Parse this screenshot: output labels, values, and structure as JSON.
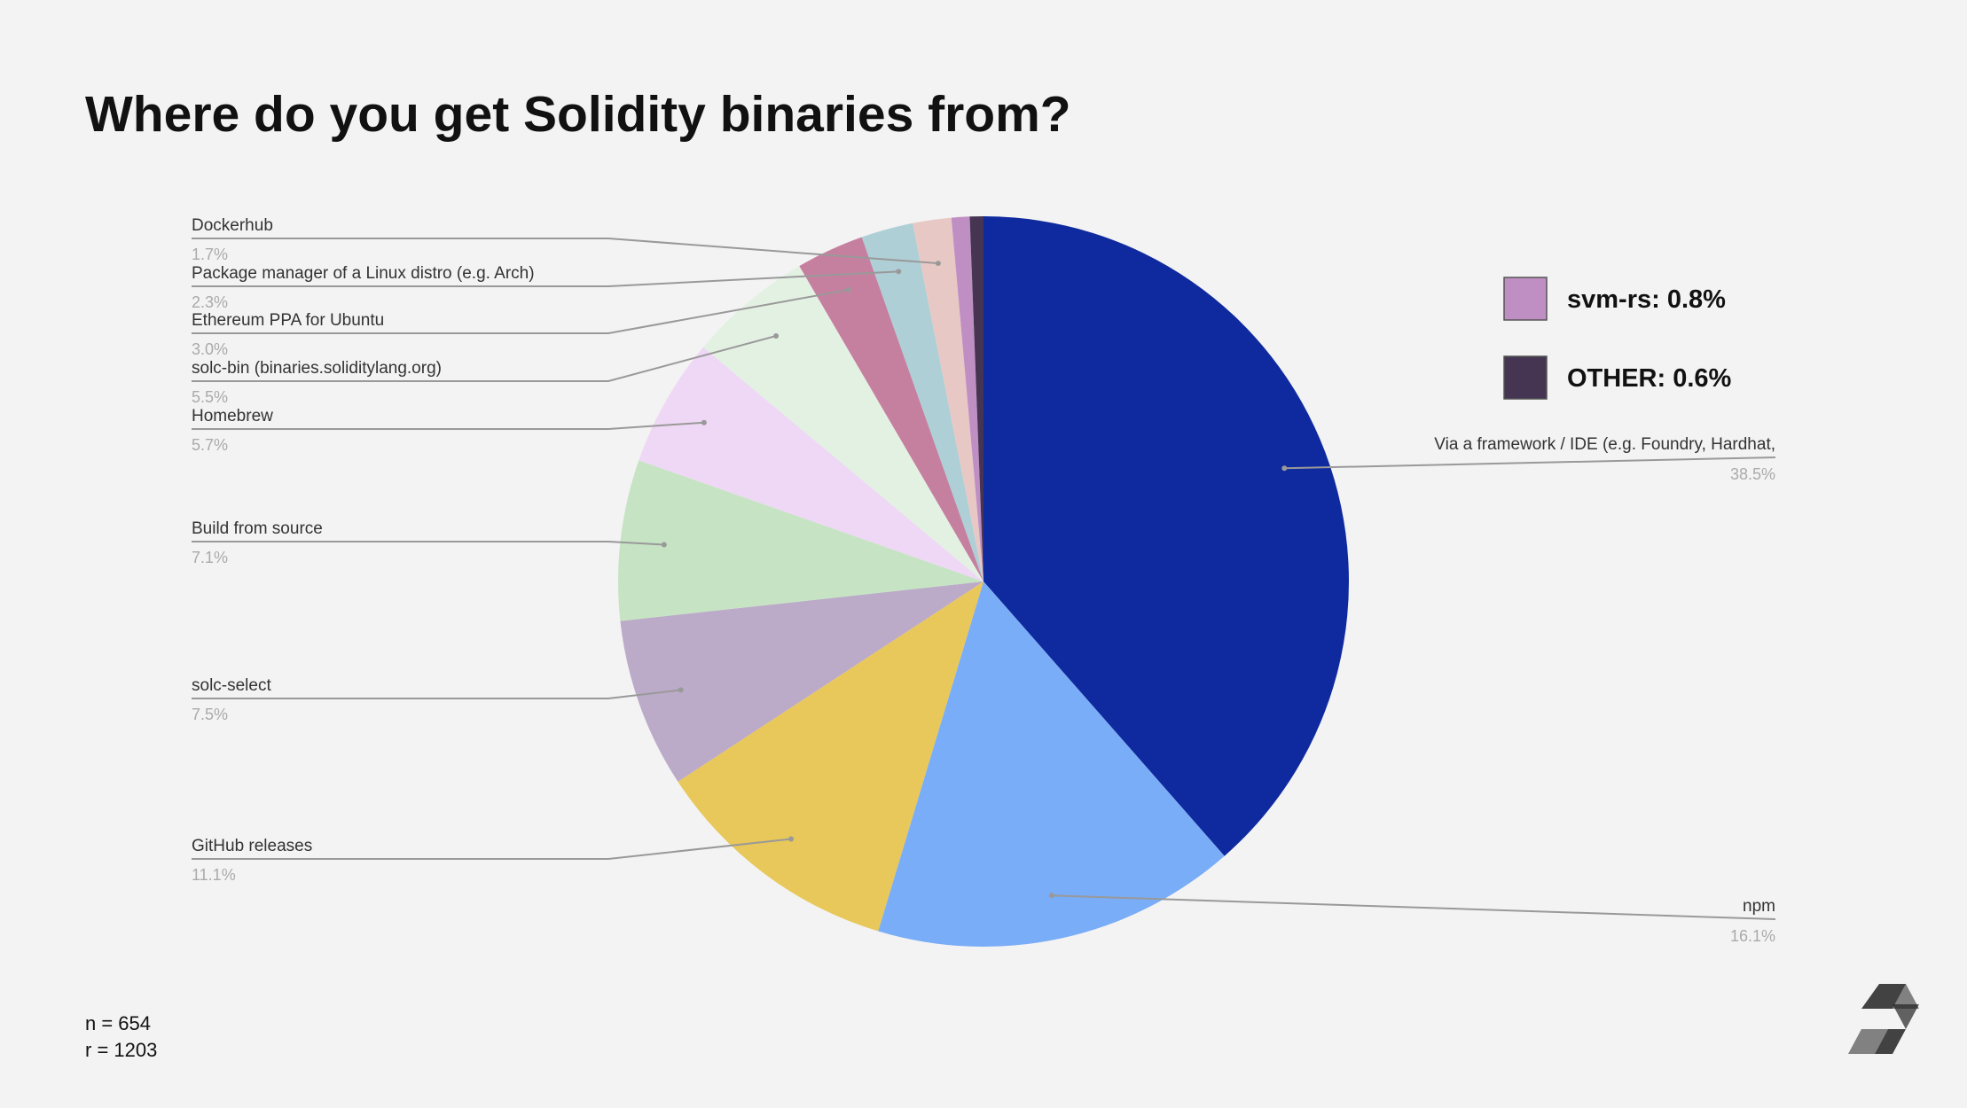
{
  "chart_data": {
    "type": "pie",
    "title": "Where do you get Solidity binaries from?",
    "categories": [
      "Via a framework / IDE (e.g. Foundry, Hardhat,",
      "npm",
      "GitHub releases",
      "solc-select",
      "Build from source",
      "Homebrew",
      "solc-bin (binaries.soliditylang.org)",
      "Ethereum PPA for Ubuntu",
      "Package manager of a Linux distro (e.g. Arch)",
      "Dockerhub",
      "svm-rs",
      "OTHER"
    ],
    "values": [
      38.5,
      16.1,
      11.1,
      7.5,
      7.1,
      5.7,
      5.5,
      3.0,
      2.3,
      1.7,
      0.8,
      0.6
    ],
    "value_labels": [
      "38.5%",
      "16.1%",
      "11.1%",
      "7.5%",
      "7.1%",
      "5.7%",
      "5.5%",
      "3.0%",
      "2.3%",
      "1.7%",
      "0.8%",
      "0.6%"
    ],
    "colors": [
      "#0f2a9e",
      "#7aadf7",
      "#e8c85a",
      "#bcaac9",
      "#c6e4c3",
      "#efd8f5",
      "#e3f1e3",
      "#c6809f",
      "#aecfd6",
      "#e8c8c4",
      "#bf8fc4",
      "#453552"
    ],
    "legend_labels": {
      "svm-rs": "svm-rs: 0.8%",
      "OTHER": "OTHER: 0.6%"
    },
    "notes": [
      "n = 654",
      "r = 1203"
    ]
  }
}
